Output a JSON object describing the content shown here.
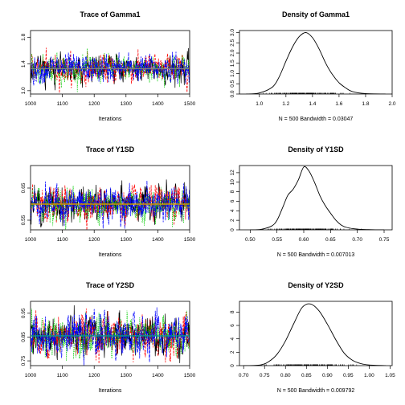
{
  "chart_data": [
    {
      "type": "line",
      "title": "Trace of Gamma1",
      "xlabel": "Iterations",
      "xlim": [
        1000,
        1500
      ],
      "ylim": [
        0.95,
        1.9
      ],
      "x_ticks": [
        "1000",
        "1100",
        "1200",
        "1300",
        "1400",
        "1500"
      ],
      "y_ticks": [
        "1.0",
        "1.4",
        "1.8"
      ],
      "series_colors": [
        "#000000",
        "#ff0000",
        "#00cc00",
        "#0000ff"
      ],
      "center": 1.33,
      "spread": 0.1,
      "mean_line": 1.33,
      "mean_color": "#808080"
    },
    {
      "type": "area",
      "title": "Density of Gamma1",
      "xlabel": "N = 500   Bandwidth = 0.03047",
      "xlim": [
        0.85,
        2.0
      ],
      "ylim": [
        0,
        3.1
      ],
      "x_ticks": [
        "1.0",
        "1.2",
        "1.4",
        "1.6",
        "1.8",
        "2.0"
      ],
      "y_ticks": [
        "0.0",
        "0.5",
        "1.0",
        "1.5",
        "2.0",
        "2.5",
        "3.0"
      ],
      "density": {
        "x": [
          0.9,
          1.0,
          1.1,
          1.15,
          1.2,
          1.25,
          1.3,
          1.35,
          1.4,
          1.45,
          1.5,
          1.55,
          1.6,
          1.65,
          1.7,
          1.8,
          1.95
        ],
        "y": [
          0.0,
          0.05,
          0.35,
          0.85,
          1.6,
          2.3,
          2.8,
          3.0,
          2.75,
          2.2,
          1.5,
          0.95,
          0.55,
          0.3,
          0.12,
          0.02,
          0.0
        ]
      },
      "rug_range": [
        1.0,
        1.75
      ],
      "rug_center": 1.34,
      "rug_sd": 0.13
    },
    {
      "type": "line",
      "title": "Trace of Y1SD",
      "xlabel": "Iterations",
      "xlim": [
        1000,
        1500
      ],
      "ylim": [
        0.52,
        0.72
      ],
      "x_ticks": [
        "1000",
        "1100",
        "1200",
        "1300",
        "1400",
        "1500"
      ],
      "y_ticks": [
        "0.55",
        "0.65"
      ],
      "series_colors": [
        "#000000",
        "#ff0000",
        "#00cc00",
        "#0000ff"
      ],
      "center": 0.6,
      "spread": 0.025,
      "mean_line": 0.6,
      "mean_color": "#cc9900"
    },
    {
      "type": "area",
      "title": "Density of Y1SD",
      "xlabel": "N = 500   Bandwidth = 0.007013",
      "xlim": [
        0.48,
        0.765
      ],
      "ylim": [
        0,
        13.5
      ],
      "x_ticks": [
        "0.50",
        "0.55",
        "0.60",
        "0.65",
        "0.70",
        "0.75"
      ],
      "y_ticks": [
        "0",
        "2",
        "4",
        "6",
        "8",
        "10",
        "12"
      ],
      "density": {
        "x": [
          0.5,
          0.52,
          0.54,
          0.55,
          0.56,
          0.57,
          0.58,
          0.59,
          0.6,
          0.61,
          0.62,
          0.63,
          0.64,
          0.65,
          0.66,
          0.67,
          0.68,
          0.7,
          0.72,
          0.75
        ],
        "y": [
          0.0,
          0.1,
          0.8,
          2.0,
          4.5,
          7.2,
          8.5,
          10.5,
          13.2,
          12.3,
          10.0,
          7.2,
          5.1,
          3.5,
          2.0,
          1.0,
          0.5,
          0.15,
          0.05,
          0.0
        ]
      },
      "rug_range": [
        0.52,
        0.72
      ],
      "rug_center": 0.6,
      "rug_sd": 0.03
    },
    {
      "type": "line",
      "title": "Trace of Y2SD",
      "xlabel": "Iterations",
      "xlim": [
        1000,
        1500
      ],
      "ylim": [
        0.73,
        1.0
      ],
      "x_ticks": [
        "1000",
        "1100",
        "1200",
        "1300",
        "1400",
        "1500"
      ],
      "y_ticks": [
        "0.75",
        "0.85",
        "0.95"
      ],
      "series_colors": [
        "#000000",
        "#ff0000",
        "#00cc00",
        "#0000ff"
      ],
      "center": 0.855,
      "spread": 0.04,
      "mean_line": 0.855,
      "mean_color": "#009999"
    },
    {
      "type": "area",
      "title": "Density of Y2SD",
      "xlabel": "N = 500   Bandwidth = 0.009792",
      "xlim": [
        0.69,
        1.055
      ],
      "ylim": [
        0,
        9.6
      ],
      "x_ticks": [
        "0.70",
        "0.75",
        "0.80",
        "0.85",
        "0.90",
        "0.95",
        "1.00",
        "1.05"
      ],
      "y_ticks": [
        "0",
        "2",
        "4",
        "6",
        "8"
      ],
      "density": {
        "x": [
          0.7,
          0.74,
          0.76,
          0.78,
          0.8,
          0.82,
          0.84,
          0.86,
          0.88,
          0.9,
          0.92,
          0.94,
          0.96,
          0.98,
          1.0,
          1.04
        ],
        "y": [
          0.0,
          0.1,
          0.6,
          1.7,
          3.7,
          6.3,
          8.7,
          9.2,
          8.2,
          6.2,
          3.9,
          1.9,
          0.8,
          0.3,
          0.1,
          0.0
        ]
      },
      "rug_range": [
        0.74,
        1.03
      ],
      "rug_center": 0.855,
      "rug_sd": 0.045
    }
  ]
}
